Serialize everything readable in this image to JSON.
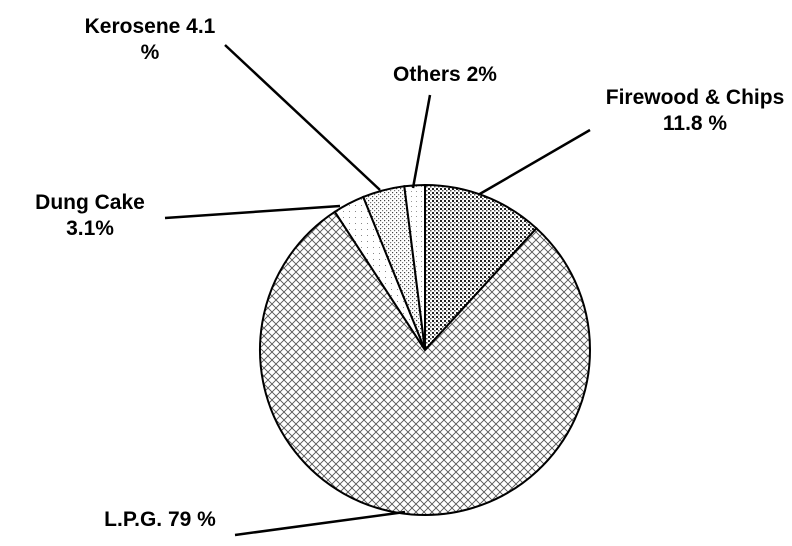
{
  "chart_data": {
    "type": "pie",
    "categories": [
      "Firewood & Chips",
      "L.P.G.",
      "Dung Cake",
      "Kerosene",
      "Others"
    ],
    "values": [
      11.8,
      79,
      3.1,
      4.1,
      2
    ],
    "value_labels": [
      "11.8 %",
      "79 %",
      "3.1%",
      "4.1 %",
      "2%"
    ]
  }
}
